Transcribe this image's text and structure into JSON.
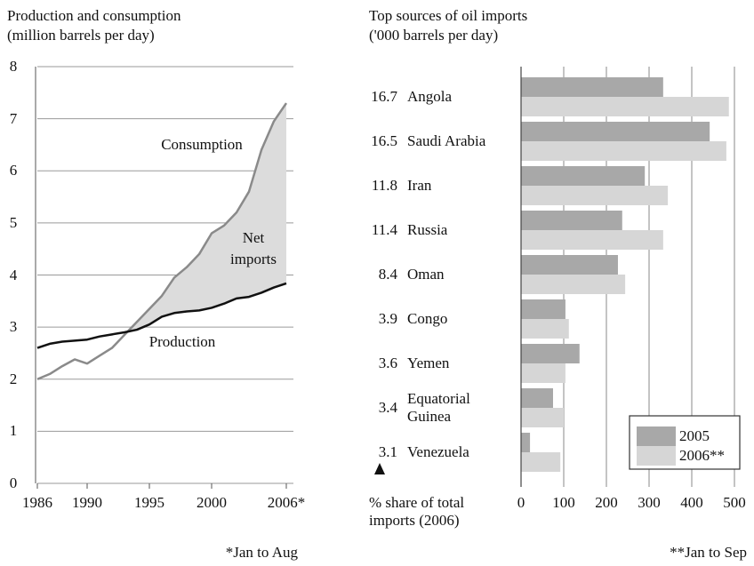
{
  "chart_data": [
    {
      "type": "line",
      "title": "Production and consumption",
      "subtitle": "(million barrels per day)",
      "x": [
        1986,
        1987,
        1988,
        1989,
        1990,
        1991,
        1992,
        1993,
        1994,
        1995,
        1996,
        1997,
        1998,
        1999,
        2000,
        2001,
        2002,
        2003,
        2004,
        2005,
        2006
      ],
      "xlim": [
        1986,
        2006
      ],
      "xticks": [
        1986,
        1990,
        1995,
        2000,
        {
          "value": 2006,
          "label": "2006*"
        }
      ],
      "ylim": [
        0,
        8
      ],
      "yticks": [
        0,
        1,
        2,
        3,
        4,
        5,
        6,
        7,
        8
      ],
      "grid": true,
      "series": [
        {
          "name": "Consumption",
          "color": "#8a8a8a",
          "values": [
            2.0,
            2.1,
            2.25,
            2.38,
            2.3,
            2.45,
            2.6,
            2.85,
            3.1,
            3.35,
            3.6,
            3.95,
            4.15,
            4.4,
            4.8,
            4.95,
            5.2,
            5.6,
            6.4,
            6.95,
            7.3
          ]
        },
        {
          "name": "Production",
          "color": "#111111",
          "values": [
            2.6,
            2.68,
            2.72,
            2.74,
            2.76,
            2.82,
            2.86,
            2.9,
            2.95,
            3.05,
            3.2,
            3.27,
            3.3,
            3.32,
            3.37,
            3.45,
            3.55,
            3.58,
            3.66,
            3.76,
            3.84
          ]
        }
      ],
      "area_color": "#dcdcdc",
      "annotations": [
        "Consumption",
        "Net imports",
        "Production"
      ],
      "footnote": "*Jan to Aug"
    },
    {
      "type": "barh",
      "title": "Top sources of oil imports",
      "subtitle": "('000 barrels per day)",
      "categories": [
        "Angola",
        "Saudi Arabia",
        "Iran",
        "Russia",
        "Oman",
        "Congo",
        "Yemen",
        "Equatorial Guinea",
        "Venezuela"
      ],
      "shares": [
        16.7,
        16.5,
        11.8,
        11.4,
        8.4,
        3.9,
        3.6,
        3.4,
        3.1
      ],
      "share_label": "% share of total imports (2006)",
      "xlim": [
        0,
        500
      ],
      "xticks": [
        0,
        100,
        200,
        300,
        400,
        500
      ],
      "grid": true,
      "legend": "bottom-right",
      "series": [
        {
          "name": "2005",
          "color": "#a8a8a8",
          "values": [
            333,
            442,
            290,
            237,
            227,
            104,
            137,
            75,
            21
          ]
        },
        {
          "name": "2006**",
          "color": "#d6d6d6",
          "values": [
            487,
            481,
            344,
            333,
            244,
            112,
            104,
            100,
            92
          ]
        }
      ],
      "footnote": "**Jan to Sep"
    }
  ]
}
